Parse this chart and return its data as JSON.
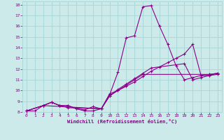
{
  "xlabel": "Windchill (Refroidissement éolien,°C)",
  "xlim": [
    -0.5,
    23.5
  ],
  "ylim": [
    8,
    18.3
  ],
  "xticks": [
    0,
    1,
    2,
    3,
    4,
    5,
    6,
    7,
    8,
    9,
    10,
    11,
    12,
    13,
    14,
    15,
    16,
    17,
    18,
    19,
    20,
    21,
    22,
    23
  ],
  "yticks": [
    8,
    9,
    10,
    11,
    12,
    13,
    14,
    15,
    16,
    17,
    18
  ],
  "bg_color": "#cceaea",
  "line_color": "#880088",
  "grid_color": "#aad8d8",
  "lines": [
    {
      "x": [
        0,
        1,
        2,
        3,
        4,
        5,
        6,
        7,
        8,
        9,
        10,
        11,
        12,
        13,
        14,
        15,
        16,
        17,
        18,
        19,
        20,
        21,
        22,
        23
      ],
      "y": [
        8.1,
        8.1,
        8.6,
        8.9,
        8.6,
        8.6,
        8.3,
        8.1,
        8.1,
        8.3,
        9.6,
        11.7,
        14.9,
        15.1,
        17.8,
        17.9,
        16.0,
        14.3,
        12.3,
        11.0,
        11.2,
        11.4,
        11.5,
        11.6
      ]
    },
    {
      "x": [
        0,
        2,
        3,
        4,
        5,
        6,
        7,
        8,
        9,
        10,
        11,
        12,
        13,
        14,
        15,
        16,
        17,
        18,
        19,
        20,
        21,
        22,
        23
      ],
      "y": [
        8.1,
        8.6,
        8.9,
        8.6,
        8.6,
        8.3,
        8.2,
        8.5,
        8.3,
        9.7,
        10.0,
        10.4,
        10.8,
        11.3,
        11.8,
        12.2,
        12.6,
        13.0,
        13.4,
        14.3,
        11.4,
        11.4,
        11.6
      ]
    },
    {
      "x": [
        0,
        2,
        3,
        4,
        5,
        9,
        10,
        11,
        12,
        13,
        14,
        15,
        19,
        20,
        21,
        22,
        23
      ],
      "y": [
        8.1,
        8.6,
        8.9,
        8.6,
        8.4,
        8.3,
        9.5,
        10.1,
        10.6,
        11.1,
        11.6,
        12.1,
        12.5,
        11.0,
        11.2,
        11.4,
        11.5
      ]
    },
    {
      "x": [
        0,
        2,
        9,
        10,
        11,
        12,
        13,
        14,
        22,
        23
      ],
      "y": [
        8.1,
        8.6,
        8.3,
        9.5,
        10.0,
        10.5,
        11.0,
        11.5,
        11.5,
        11.6
      ]
    }
  ]
}
